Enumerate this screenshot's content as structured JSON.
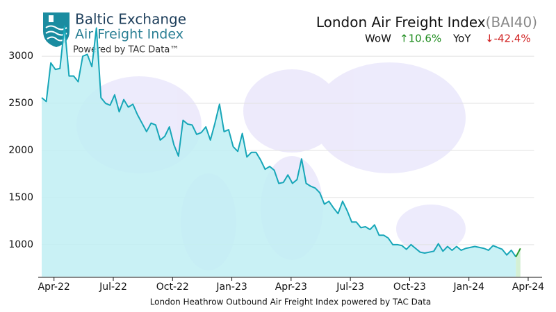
{
  "chart_data": {
    "type": "area",
    "brand": "Baltic Exchange",
    "brand_subtitle": "Air Freight Index",
    "brand_credit": "Powered by TAC Data™",
    "title": "London Air Freight Index",
    "subtitle": "(BAI40)",
    "annotations": [
      {
        "label": "WoW",
        "text": "↑10.6%",
        "color": "#1e8c1e"
      },
      {
        "label": "YoY",
        "text": "↓-42.4%",
        "color": "#d01f1f"
      }
    ],
    "caption": "London Heathrow Outbound Air Freight Index powered by TAC Data",
    "x": [
      0,
      1,
      2,
      3,
      4,
      5,
      6,
      7,
      8,
      9,
      10,
      11,
      12,
      13,
      14,
      15,
      16,
      17,
      18,
      19,
      20,
      21,
      22,
      23,
      24,
      25,
      26,
      27,
      28,
      29,
      30,
      31,
      32,
      33,
      34,
      35,
      36,
      37,
      38,
      39,
      40,
      41,
      42,
      43,
      44,
      45,
      46,
      47,
      48,
      49,
      50,
      51,
      52,
      53,
      54,
      55,
      56,
      57,
      58,
      59,
      60,
      61,
      62,
      63,
      64,
      65,
      66,
      67,
      68,
      69,
      70,
      71,
      72,
      73,
      74,
      75,
      76,
      77,
      78,
      79,
      80,
      81,
      82,
      83,
      84,
      85,
      86,
      87,
      88,
      89,
      90,
      91,
      92,
      93,
      94,
      95,
      96,
      97,
      98,
      99,
      100,
      101,
      102,
      103,
      104,
      105
    ],
    "series": [
      {
        "color": "#17a6b8",
        "fill": "#bfeef3",
        "last_segment_color": "#2e9a2e",
        "last_segment_fill": "#d4f0d4",
        "values": [
          2560,
          2520,
          2930,
          2860,
          2870,
          3320,
          2790,
          2790,
          2730,
          3000,
          3020,
          2890,
          3300,
          2560,
          2500,
          2480,
          2590,
          2410,
          2540,
          2460,
          2490,
          2380,
          2290,
          2200,
          2290,
          2270,
          2110,
          2150,
          2250,
          2060,
          1940,
          2320,
          2280,
          2270,
          2170,
          2190,
          2250,
          2110,
          2290,
          2490,
          2200,
          2220,
          2040,
          1990,
          2180,
          1930,
          1980,
          1980,
          1900,
          1800,
          1830,
          1790,
          1650,
          1660,
          1740,
          1650,
          1690,
          1910,
          1650,
          1620,
          1600,
          1550,
          1430,
          1460,
          1390,
          1330,
          1460,
          1360,
          1240,
          1240,
          1180,
          1190,
          1160,
          1210,
          1100,
          1100,
          1070,
          1000,
          1000,
          990,
          950,
          1000,
          960,
          920,
          910,
          920,
          930,
          1010,
          930,
          980,
          940,
          980,
          940,
          960,
          970,
          980,
          970,
          960,
          940,
          990,
          970,
          950,
          890,
          940,
          870,
          960
        ]
      }
    ],
    "xlim": [
      0,
      108
    ],
    "xticks": [
      {
        "value": 2.7,
        "label": "Apr-22"
      },
      {
        "value": 15.7,
        "label": "Jul-22"
      },
      {
        "value": 28.7,
        "label": "Oct-22"
      },
      {
        "value": 41.7,
        "label": "Jan-23"
      },
      {
        "value": 54.7,
        "label": "Apr-23"
      },
      {
        "value": 67.7,
        "label": "Jul-23"
      },
      {
        "value": 80.7,
        "label": "Oct-23"
      },
      {
        "value": 93.7,
        "label": "Jan-24"
      },
      {
        "value": 106.7,
        "label": "Apr-24"
      }
    ],
    "ylim": [
      660,
      3450
    ],
    "yticks": [
      1000,
      1500,
      2000,
      2500,
      3000
    ],
    "grid": true
  }
}
